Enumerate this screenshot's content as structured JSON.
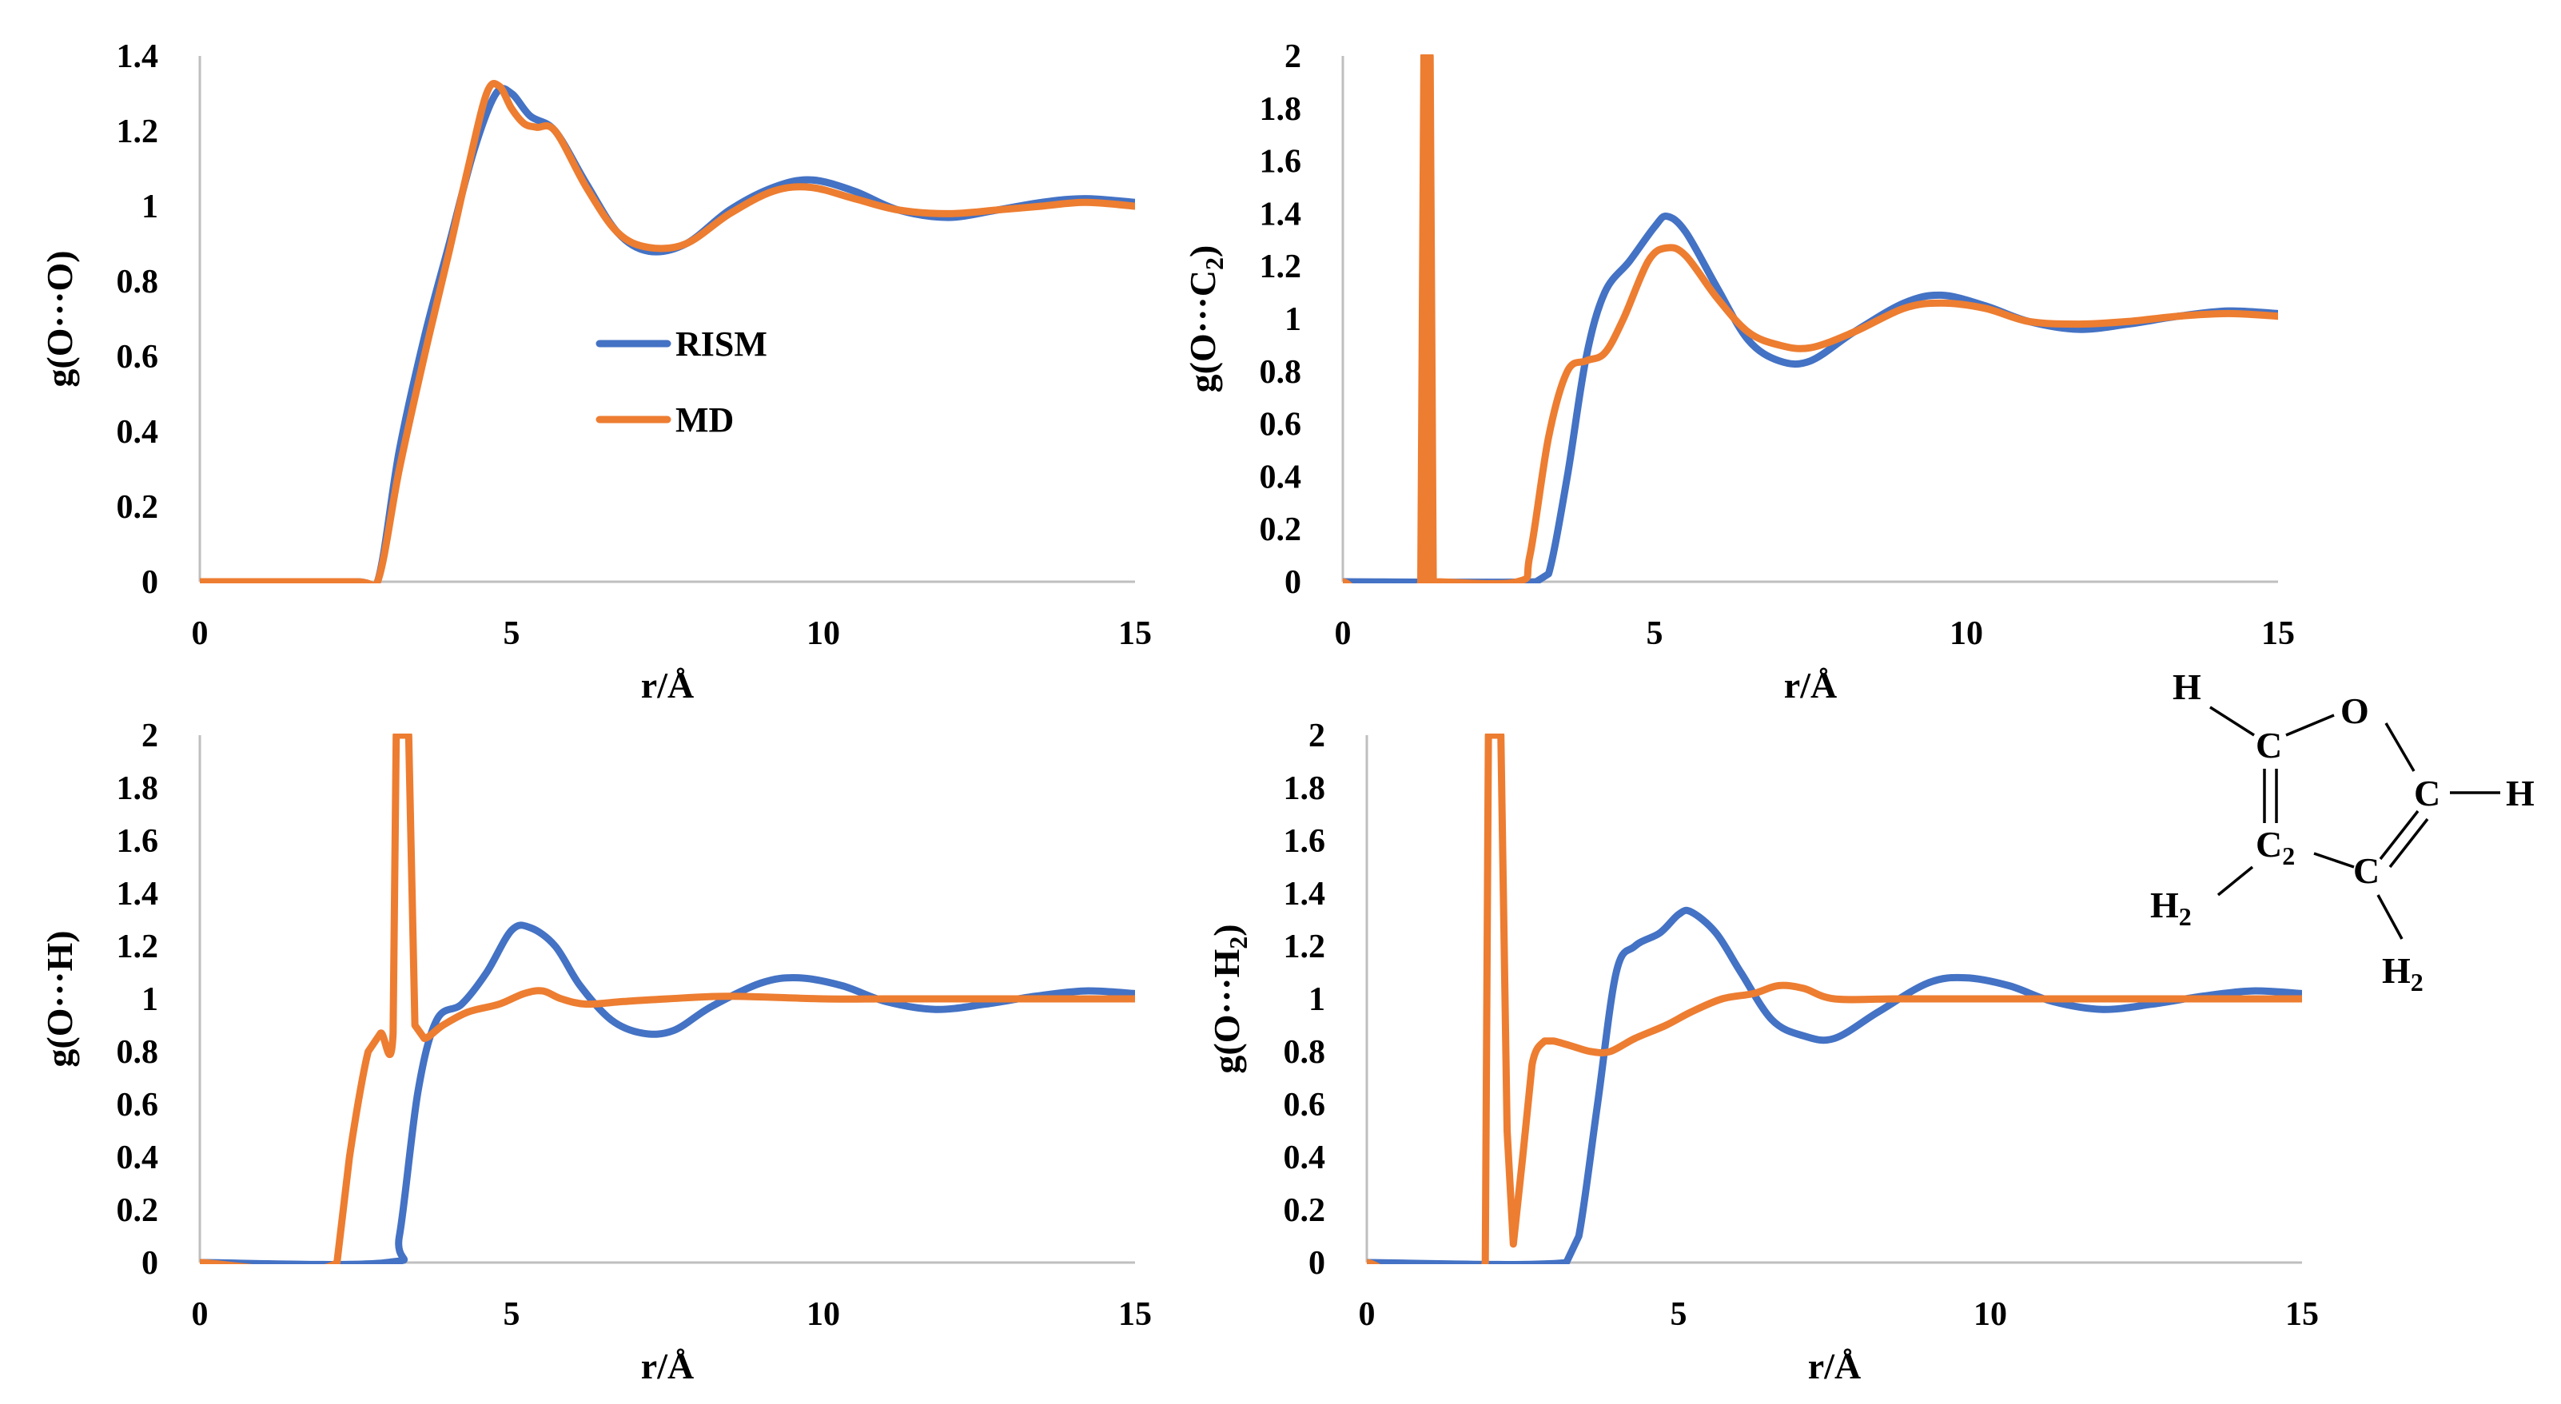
{
  "colors": {
    "rism": "#4472C4",
    "md": "#ED7D31",
    "axis": "#BFBFBF",
    "text": "#000000"
  },
  "legend": {
    "position": "inside-left",
    "entries": [
      "RISM",
      "MD"
    ]
  },
  "molecule": {
    "name": "furan",
    "labels": {
      "O": "O",
      "C": "C",
      "H": "H",
      "C2": "C",
      "C2_sub": "2",
      "H2": "H",
      "H2_sub": "2"
    }
  },
  "chart_data": [
    {
      "type": "line",
      "id": "OO",
      "xlabel": "r/Å",
      "ylabel": {
        "main": "g(O···O)",
        "sub": ""
      },
      "xlim": [
        0,
        15
      ],
      "ylim": [
        0,
        1.4
      ],
      "xticks": [
        0,
        5,
        10,
        15
      ],
      "yticks": [
        0,
        0.2,
        0.4,
        0.6,
        0.8,
        1,
        1.2,
        1.4
      ],
      "ytick_labels": [
        "0",
        "0.2",
        "0.4",
        "0.6",
        "0.8",
        "1",
        "1.2",
        "1.4"
      ],
      "series": [
        {
          "name": "RISM",
          "x": [
            0,
            2.5,
            2.85,
            3.2,
            3.6,
            4.0,
            4.4,
            4.75,
            5.0,
            5.3,
            5.7,
            6.2,
            6.7,
            7.2,
            7.8,
            8.5,
            9.2,
            9.8,
            10.5,
            11.2,
            12.0,
            12.8,
            13.5,
            14.2,
            15
          ],
          "y": [
            0,
            0,
            0,
            0.35,
            0.65,
            0.9,
            1.15,
            1.3,
            1.3,
            1.24,
            1.2,
            1.06,
            0.93,
            0.88,
            0.9,
            0.99,
            1.05,
            1.07,
            1.04,
            0.99,
            0.97,
            0.99,
            1.01,
            1.02,
            1.01
          ]
        },
        {
          "name": "MD",
          "x": [
            0,
            2.5,
            2.85,
            3.2,
            3.6,
            4.0,
            4.3,
            4.6,
            4.8,
            5.0,
            5.2,
            5.4,
            5.7,
            6.2,
            6.7,
            7.2,
            7.8,
            8.5,
            9.2,
            9.8,
            10.5,
            11.2,
            12.0,
            12.8,
            13.5,
            14.2,
            15
          ],
          "y": [
            0,
            0,
            0,
            0.3,
            0.6,
            0.88,
            1.1,
            1.3,
            1.32,
            1.26,
            1.22,
            1.21,
            1.2,
            1.05,
            0.93,
            0.89,
            0.9,
            0.98,
            1.04,
            1.05,
            1.02,
            0.99,
            0.98,
            0.99,
            1.0,
            1.01,
            1.0
          ]
        }
      ],
      "show_legend": true
    },
    {
      "type": "line",
      "id": "OC2",
      "xlabel": "r/Å",
      "ylabel": {
        "main": "g(O···C",
        "sub": "2",
        "close": ")"
      },
      "xlim": [
        0,
        15
      ],
      "ylim": [
        0,
        2
      ],
      "xticks": [
        0,
        5,
        10,
        15
      ],
      "yticks": [
        0,
        0.2,
        0.4,
        0.6,
        0.8,
        1,
        1.2,
        1.4,
        1.6,
        1.8,
        2
      ],
      "ytick_labels": [
        "0",
        "0.2",
        "0.4",
        "0.6",
        "0.8",
        "1",
        "1.2",
        "1.4",
        "1.6",
        "1.8",
        "2"
      ],
      "series": [
        {
          "name": "RISM",
          "x": [
            0,
            3.1,
            3.3,
            3.6,
            3.9,
            4.2,
            4.6,
            5.0,
            5.2,
            5.5,
            6.0,
            6.5,
            7.0,
            7.5,
            8.2,
            9.0,
            9.6,
            10.3,
            11.0,
            11.8,
            12.6,
            13.4,
            14.2,
            15
          ],
          "y": [
            0,
            0,
            0.03,
            0.4,
            0.85,
            1.1,
            1.22,
            1.35,
            1.39,
            1.33,
            1.12,
            0.92,
            0.84,
            0.84,
            0.95,
            1.06,
            1.09,
            1.05,
            0.99,
            0.96,
            0.98,
            1.01,
            1.03,
            1.02
          ]
        },
        {
          "name": "MD",
          "x": [
            0,
            1.25,
            1.3,
            1.35,
            1.4,
            1.45,
            1.5,
            2.8,
            3.0,
            3.3,
            3.6,
            3.9,
            4.2,
            4.5,
            4.9,
            5.2,
            5.5,
            6.0,
            6.5,
            7.0,
            7.5,
            8.2,
            9.0,
            9.6,
            10.3,
            11.0,
            11.8,
            12.6,
            13.4,
            14.2,
            15
          ],
          "y": [
            0,
            0,
            2.0,
            0,
            2.0,
            0,
            0,
            0,
            0.1,
            0.55,
            0.8,
            0.84,
            0.87,
            1.0,
            1.22,
            1.27,
            1.24,
            1.08,
            0.95,
            0.9,
            0.89,
            0.95,
            1.04,
            1.06,
            1.04,
            0.99,
            0.98,
            0.99,
            1.01,
            1.02,
            1.01
          ]
        }
      ],
      "show_legend": false
    },
    {
      "type": "line",
      "id": "OH",
      "xlabel": "r/Å",
      "ylabel": {
        "main": "g(O···H)",
        "sub": ""
      },
      "xlim": [
        0,
        15
      ],
      "ylim": [
        0,
        2
      ],
      "xticks": [
        0,
        5,
        10,
        15
      ],
      "yticks": [
        0,
        0.2,
        0.4,
        0.6,
        0.8,
        1,
        1.2,
        1.4,
        1.6,
        1.8,
        2
      ],
      "ytick_labels": [
        "0",
        "0.2",
        "0.4",
        "0.6",
        "0.8",
        "1",
        "1.2",
        "1.4",
        "1.6",
        "1.8",
        "2"
      ],
      "series": [
        {
          "name": "RISM",
          "x": [
            0,
            3.0,
            3.2,
            3.5,
            3.8,
            4.2,
            4.6,
            5.0,
            5.3,
            5.7,
            6.1,
            6.6,
            7.1,
            7.6,
            8.2,
            9.0,
            9.6,
            10.3,
            11.0,
            11.8,
            12.6,
            13.4,
            14.2,
            15
          ],
          "y": [
            0,
            0,
            0.1,
            0.65,
            0.92,
            0.98,
            1.1,
            1.26,
            1.27,
            1.2,
            1.05,
            0.92,
            0.87,
            0.88,
            0.97,
            1.06,
            1.08,
            1.05,
            0.99,
            0.96,
            0.98,
            1.01,
            1.03,
            1.02
          ]
        },
        {
          "name": "MD",
          "x": [
            0,
            2.2,
            2.4,
            2.7,
            2.9,
            3.1,
            3.15,
            3.25,
            3.35,
            3.45,
            3.6,
            3.9,
            4.3,
            4.8,
            5.2,
            5.5,
            5.8,
            6.2,
            6.8,
            7.5,
            8.5,
            10,
            11,
            12,
            13,
            14,
            15
          ],
          "y": [
            0,
            0,
            0.4,
            0.8,
            0.87,
            0.87,
            2.0,
            2.0,
            2.0,
            0.9,
            0.85,
            0.9,
            0.95,
            0.98,
            1.02,
            1.03,
            1.0,
            0.98,
            0.99,
            1.0,
            1.01,
            1.0,
            1.0,
            1.0,
            1.0,
            1.0,
            1.0
          ]
        }
      ],
      "show_legend": false
    },
    {
      "type": "line",
      "id": "OH2",
      "xlabel": "r/Å",
      "ylabel": {
        "main": "g(O···H",
        "sub": "2",
        "close": ")"
      },
      "xlim": [
        0,
        15
      ],
      "ylim": [
        0,
        2
      ],
      "xticks": [
        0,
        5,
        10,
        15
      ],
      "yticks": [
        0,
        0.2,
        0.4,
        0.6,
        0.8,
        1,
        1.2,
        1.4,
        1.6,
        1.8,
        2
      ],
      "ytick_labels": [
        "0",
        "0.2",
        "0.4",
        "0.6",
        "0.8",
        "1",
        "1.2",
        "1.4",
        "1.6",
        "1.8",
        "2"
      ],
      "series": [
        {
          "name": "RISM",
          "x": [
            0,
            3.2,
            3.4,
            3.7,
            4.0,
            4.3,
            4.7,
            5.0,
            5.2,
            5.6,
            6.0,
            6.5,
            7.0,
            7.5,
            8.2,
            9.0,
            9.6,
            10.3,
            11.0,
            11.8,
            12.6,
            13.4,
            14.2,
            15
          ],
          "y": [
            0,
            0,
            0.1,
            0.6,
            1.1,
            1.2,
            1.25,
            1.32,
            1.33,
            1.25,
            1.1,
            0.92,
            0.86,
            0.85,
            0.95,
            1.06,
            1.08,
            1.05,
            0.99,
            0.96,
            0.98,
            1.01,
            1.03,
            1.02
          ]
        },
        {
          "name": "MD",
          "x": [
            0,
            1.9,
            1.95,
            2.05,
            2.15,
            2.25,
            2.35,
            2.5,
            2.65,
            2.85,
            3.0,
            3.3,
            3.6,
            3.9,
            4.3,
            4.8,
            5.2,
            5.7,
            6.2,
            6.6,
            7.0,
            7.5,
            8.5,
            10,
            11,
            12,
            13,
            14,
            15
          ],
          "y": [
            0,
            0,
            2.0,
            2.0,
            2.0,
            0.5,
            0.07,
            0.4,
            0.75,
            0.84,
            0.84,
            0.82,
            0.8,
            0.8,
            0.85,
            0.9,
            0.95,
            1.0,
            1.02,
            1.05,
            1.04,
            1.0,
            1.0,
            1.0,
            1.0,
            1.0,
            1.0,
            1.0,
            1.0
          ]
        }
      ],
      "show_legend": false
    }
  ]
}
